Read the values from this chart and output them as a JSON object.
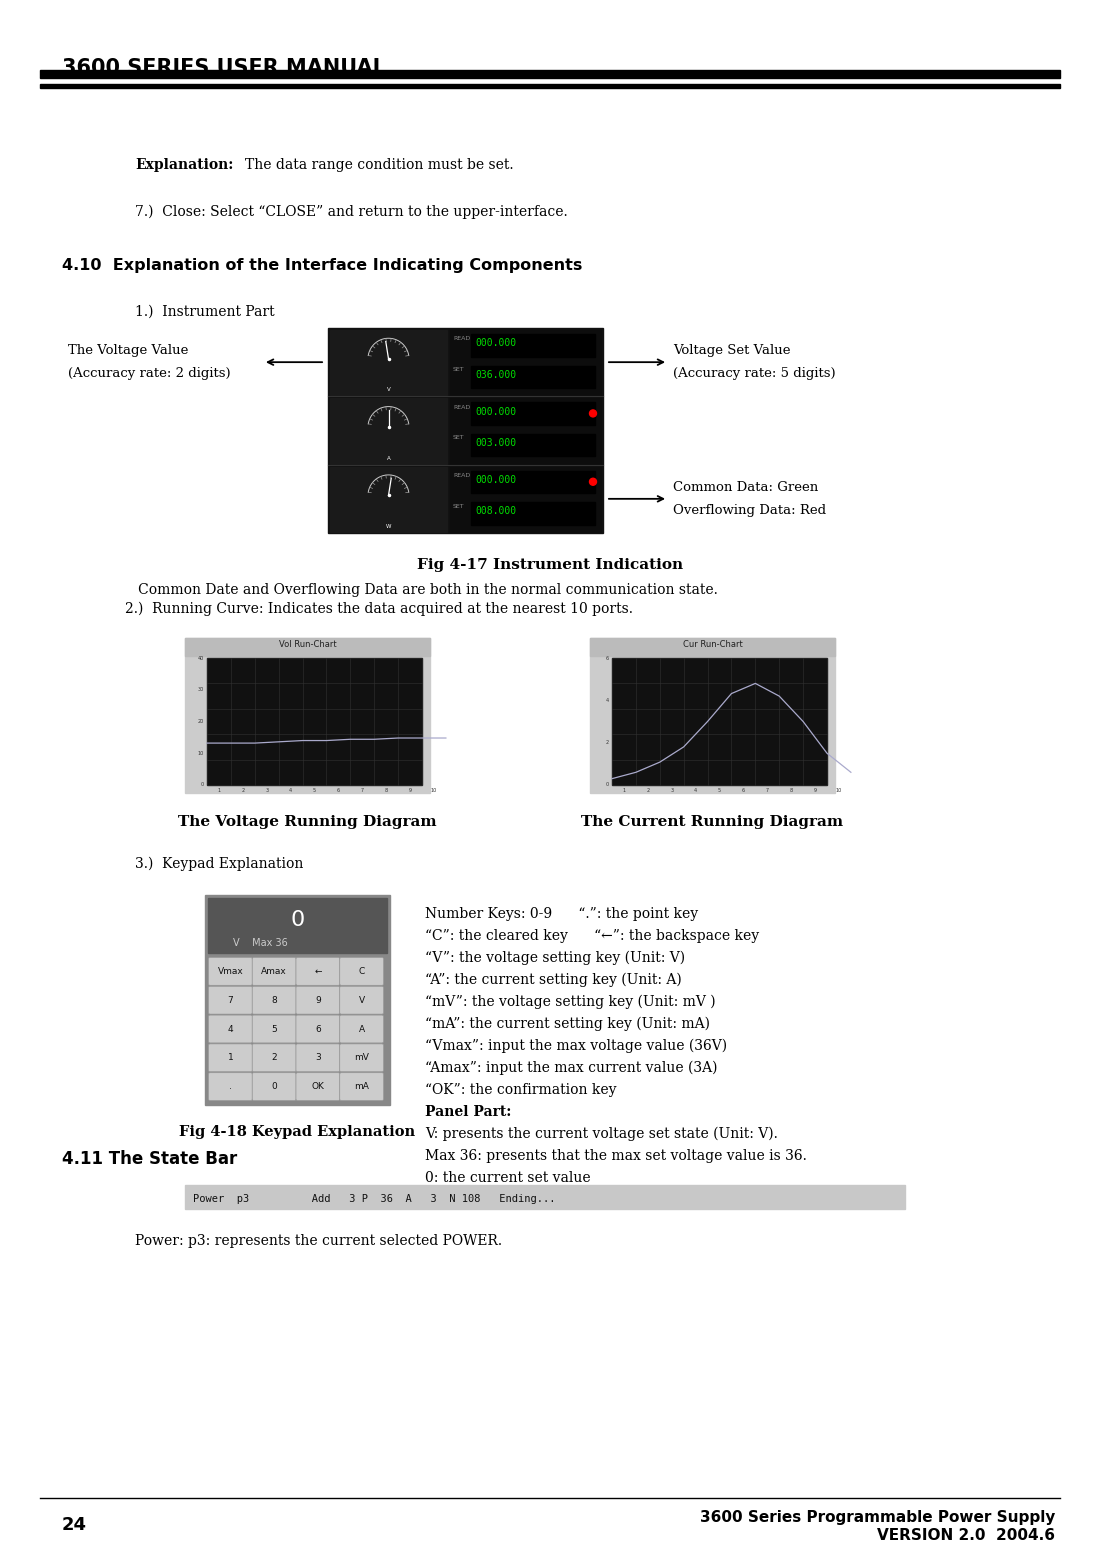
{
  "page_title": "3600 SERIES USER MANUAL",
  "bg_color": "#ffffff",
  "text_color": "#000000",
  "page_number": "24",
  "footer_right_line1": "3600 Series Programmable Power Supply",
  "footer_right_line2": "VERSION 2.0  2004.6",
  "explanation_bold": "Explanation:",
  "explanation_text": "The data range condition must be set.",
  "item7_text": "7.)  Close: Select “CLOSE” and return to the upper-interface.",
  "section_title": "4.10  Explanation of the Interface Indicating Components",
  "item1_text": "1.)  Instrument Part",
  "voltage_label_line1": "The Voltage Value",
  "voltage_label_line2": "(Accuracy rate: 2 digits)",
  "voltage_set_label_line1": "Voltage Set Value",
  "voltage_set_label_line2": "(Accuracy rate: 5 digits)",
  "common_data_label": "Common Data: Green",
  "overflow_data_label": "Overflowing Data: Red",
  "fig_caption": "Fig 4-17 Instrument Indication",
  "fig_caption_text1": "   Common Date and Overflowing Data are both in the normal communication state.",
  "fig_caption_text2": "2.)  Running Curve: Indicates the data acquired at the nearest 10 ports.",
  "vol_chart_title": "Vol Run-Chart",
  "cur_chart_title": "Cur Run-Chart",
  "vol_chart_caption": "The Voltage Running Diagram",
  "cur_chart_caption": "The Current Running Diagram",
  "item3_text": "3.)  Keypad Explanation",
  "fig18_caption": "Fig 4-18 Keypad Explanation",
  "keypad_labels": [
    [
      "Vmax",
      "Amax",
      "←",
      "C"
    ],
    [
      "7",
      "8",
      "9",
      "V"
    ],
    [
      "4",
      "5",
      "6",
      "A"
    ],
    [
      "1",
      "2",
      "3",
      "mV"
    ],
    [
      ".",
      "0",
      "OK",
      "mA"
    ]
  ],
  "keypad_notes": [
    [
      "Number Keys: 0-9",
      "      “.”: the point key"
    ],
    [
      "“C”: the cleared key",
      "      “←”: the backspace key"
    ],
    [
      "“V”: the voltage setting key (Unit: V)",
      ""
    ],
    [
      "“A”: the current setting key (Unit: A)",
      ""
    ],
    [
      "“mV”: the voltage setting key (Unit: mV )",
      ""
    ],
    [
      "“mA”: the current setting key (Unit: mA)",
      ""
    ],
    [
      "“Vmax”: input the max voltage value (36V)",
      ""
    ],
    [
      "“Amax”: input the max current value (3A)",
      ""
    ],
    [
      "“OK”: the confirmation key",
      ""
    ],
    [
      "Panel Part:",
      ""
    ],
    [
      "V: presents the current voltage set state (Unit: V).",
      ""
    ],
    [
      "Max 36: presents that the max set voltage value is 36.",
      ""
    ],
    [
      "0: the current set value",
      ""
    ]
  ],
  "section411": "4.11 The State Bar",
  "state_bar_text": "Power  p3          Add   3 P  36  A   3  N 108   Ending...",
  "power_text": "Power: p3: represents the current selected POWER."
}
